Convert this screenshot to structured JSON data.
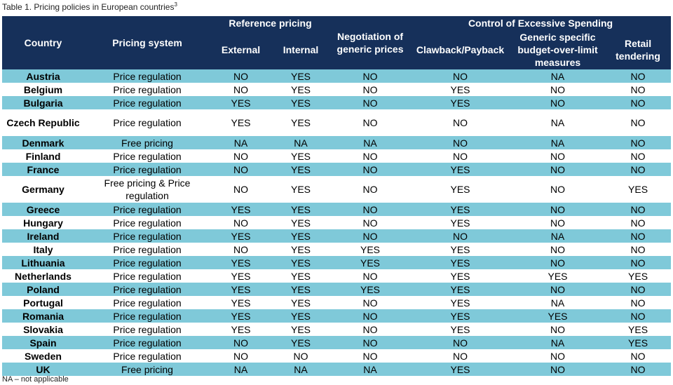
{
  "caption": {
    "text": "Table 1. Pricing policies in European countries",
    "sup": "3"
  },
  "headers": {
    "country": "Country",
    "pricing_system": "Pricing system",
    "reference_pricing": "Reference pricing",
    "external": "External",
    "internal": "Internal",
    "negotiation": "Negotiation of generic prices",
    "control": "Control of Excessive Spending",
    "clawback": "Clawback/Payback",
    "generic_budget": "Generic specific budget-over-limit measures",
    "retail": "Retail tendering"
  },
  "rows": [
    {
      "country": "Austria",
      "system": "Price regulation",
      "external": "NO",
      "internal": "YES",
      "negotiation": "NO",
      "clawback": "NO",
      "budget": "NA",
      "retail": "NO"
    },
    {
      "country": "Belgium",
      "system": "Price regulation",
      "external": "NO",
      "internal": "YES",
      "negotiation": "NO",
      "clawback": "YES",
      "budget": "NO",
      "retail": "NO"
    },
    {
      "country": "Bulgaria",
      "system": "Price regulation",
      "external": "YES",
      "internal": "YES",
      "negotiation": "NO",
      "clawback": "YES",
      "budget": "NO",
      "retail": "NO"
    },
    {
      "country": "Czech Republic",
      "system": "Price regulation",
      "external": "YES",
      "internal": "YES",
      "negotiation": "NO",
      "clawback": "NO",
      "budget": "NA",
      "retail": "NO"
    },
    {
      "country": "Denmark",
      "system": "Free pricing",
      "external": "NA",
      "internal": "NA",
      "negotiation": "NA",
      "clawback": "NO",
      "budget": "NA",
      "retail": "NO"
    },
    {
      "country": "Finland",
      "system": "Price regulation",
      "external": "NO",
      "internal": "YES",
      "negotiation": "NO",
      "clawback": "NO",
      "budget": "NO",
      "retail": "NO"
    },
    {
      "country": "France",
      "system": "Price regulation",
      "external": "NO",
      "internal": "YES",
      "negotiation": "NO",
      "clawback": "YES",
      "budget": "NO",
      "retail": "NO"
    },
    {
      "country": "Germany",
      "system": "Free pricing & Price regulation",
      "external": "NO",
      "internal": "YES",
      "negotiation": "NO",
      "clawback": "YES",
      "budget": "NO",
      "retail": "YES"
    },
    {
      "country": "Greece",
      "system": "Price regulation",
      "external": "YES",
      "internal": "YES",
      "negotiation": "NO",
      "clawback": "YES",
      "budget": "NO",
      "retail": "NO"
    },
    {
      "country": "Hungary",
      "system": "Price regulation",
      "external": "NO",
      "internal": "YES",
      "negotiation": "NO",
      "clawback": "YES",
      "budget": "NO",
      "retail": "NO"
    },
    {
      "country": "Ireland",
      "system": "Price regulation",
      "external": "YES",
      "internal": "YES",
      "negotiation": "NO",
      "clawback": "NO",
      "budget": "NA",
      "retail": "NO"
    },
    {
      "country": "Italy",
      "system": "Price regulation",
      "external": "NO",
      "internal": "YES",
      "negotiation": "YES",
      "clawback": "YES",
      "budget": "NO",
      "retail": "NO"
    },
    {
      "country": "Lithuania",
      "system": "Price regulation",
      "external": "YES",
      "internal": "YES",
      "negotiation": "YES",
      "clawback": "YES",
      "budget": "NO",
      "retail": "NO"
    },
    {
      "country": "Netherlands",
      "system": "Price regulation",
      "external": "YES",
      "internal": "YES",
      "negotiation": "NO",
      "clawback": "YES",
      "budget": "YES",
      "retail": "YES"
    },
    {
      "country": "Poland",
      "system": "Price regulation",
      "external": "YES",
      "internal": "YES",
      "negotiation": "YES",
      "clawback": "YES",
      "budget": "NO",
      "retail": "NO"
    },
    {
      "country": "Portugal",
      "system": "Price regulation",
      "external": "YES",
      "internal": "YES",
      "negotiation": "NO",
      "clawback": "YES",
      "budget": "NA",
      "retail": "NO"
    },
    {
      "country": "Romania",
      "system": "Price regulation",
      "external": "YES",
      "internal": "YES",
      "negotiation": "NO",
      "clawback": "YES",
      "budget": "YES",
      "retail": "NO"
    },
    {
      "country": "Slovakia",
      "system": "Price regulation",
      "external": "YES",
      "internal": "YES",
      "negotiation": "NO",
      "clawback": "YES",
      "budget": "NO",
      "retail": "YES"
    },
    {
      "country": "Spain",
      "system": "Price regulation",
      "external": "NO",
      "internal": "YES",
      "negotiation": "NO",
      "clawback": "NO",
      "budget": "NA",
      "retail": "YES"
    },
    {
      "country": "Sweden",
      "system": "Price regulation",
      "external": "NO",
      "internal": "NO",
      "negotiation": "NO",
      "clawback": "NO",
      "budget": "NO",
      "retail": "NO"
    },
    {
      "country": "UK",
      "system": "Free pricing",
      "external": "NA",
      "internal": "NA",
      "negotiation": "NA",
      "clawback": "YES",
      "budget": "NO",
      "retail": "NO"
    }
  ],
  "footnote": "NA – not applicable"
}
